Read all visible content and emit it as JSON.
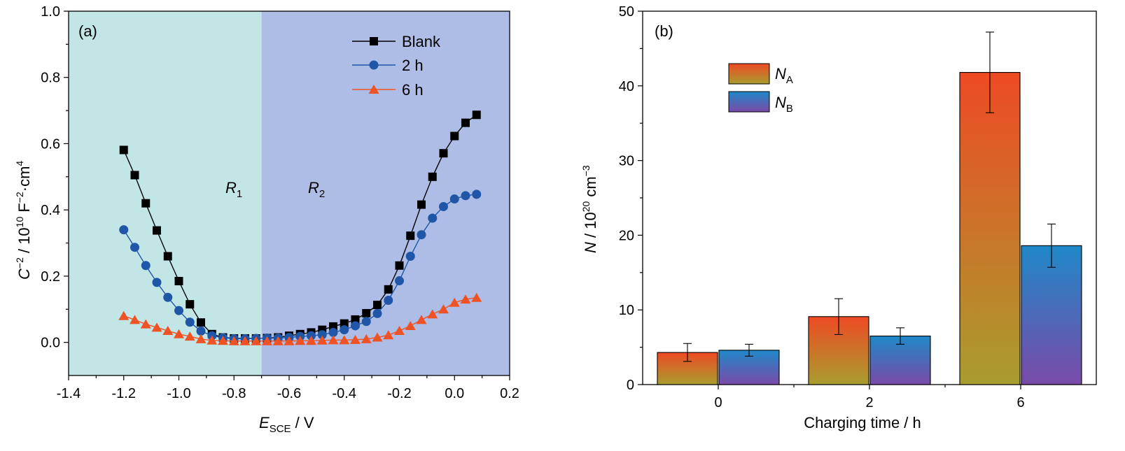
{
  "chart_data": [
    {
      "type": "line",
      "panel_label": "(a)",
      "xlabel": {
        "main": "E",
        "sub": "SCE",
        "tail": " / V"
      },
      "ylabel": {
        "a": "C",
        "b": "−2",
        "c": " / 10",
        "d": "10",
        "e": " F",
        "f": "−2",
        "g": "·cm",
        "h": "4"
      },
      "xlim": [
        -1.4,
        0.2
      ],
      "ylim": [
        -0.1,
        1.0
      ],
      "xticks": [
        "-1.4",
        "-1.2",
        "-1.0",
        "-0.8",
        "-0.6",
        "-0.4",
        "-0.2",
        "0.0",
        "0.2"
      ],
      "yticks": [
        "0.0",
        "0.2",
        "0.4",
        "0.6",
        "0.8",
        "1.0"
      ],
      "regions": [
        {
          "name": "R",
          "sub": "1",
          "from": -1.4,
          "to": -0.7,
          "color": "#c2e6e6"
        },
        {
          "name": "R",
          "sub": "2",
          "from": -0.7,
          "to": 0.2,
          "color": "#aebde5"
        }
      ],
      "legend_position": "top-right",
      "x": [
        -1.2,
        -1.16,
        -1.12,
        -1.08,
        -1.04,
        -1.0,
        -0.96,
        -0.92,
        -0.88,
        -0.84,
        -0.8,
        -0.76,
        -0.72,
        -0.68,
        -0.64,
        -0.6,
        -0.56,
        -0.52,
        -0.48,
        -0.44,
        -0.4,
        -0.36,
        -0.32,
        -0.28,
        -0.24,
        -0.2,
        -0.16,
        -0.12,
        -0.08,
        -0.04,
        0.0,
        0.04,
        0.08
      ],
      "series": [
        {
          "name": "Blank",
          "color": "#000000",
          "marker": "square",
          "values": [
            0.581,
            0.505,
            0.42,
            0.338,
            0.26,
            0.185,
            0.115,
            0.06,
            0.025,
            0.015,
            0.012,
            0.012,
            0.012,
            0.013,
            0.015,
            0.02,
            0.025,
            0.03,
            0.038,
            0.048,
            0.057,
            0.069,
            0.088,
            0.113,
            0.16,
            0.232,
            0.322,
            0.416,
            0.5,
            0.571,
            0.623,
            0.663,
            0.687
          ]
        },
        {
          "name": "2 h",
          "color": "#1f56a8",
          "marker": "circle",
          "values": [
            0.34,
            0.287,
            0.232,
            0.181,
            0.136,
            0.096,
            0.061,
            0.034,
            0.02,
            0.014,
            0.011,
            0.011,
            0.012,
            0.013,
            0.013,
            0.015,
            0.018,
            0.02,
            0.023,
            0.03,
            0.038,
            0.05,
            0.063,
            0.087,
            0.127,
            0.186,
            0.26,
            0.325,
            0.375,
            0.41,
            0.433,
            0.443,
            0.447
          ]
        },
        {
          "name": "6 h",
          "color": "#ef5325",
          "marker": "triangle",
          "values": [
            0.08,
            0.068,
            0.055,
            0.045,
            0.035,
            0.025,
            0.018,
            0.01,
            0.006,
            0.005,
            0.004,
            0.004,
            0.004,
            0.004,
            0.004,
            0.004,
            0.005,
            0.005,
            0.006,
            0.007,
            0.007,
            0.008,
            0.01,
            0.015,
            0.022,
            0.035,
            0.05,
            0.068,
            0.085,
            0.1,
            0.12,
            0.13,
            0.135
          ]
        }
      ]
    },
    {
      "type": "bar",
      "panel_label": "(b)",
      "xlabel": "Charging time / h",
      "ylabel": {
        "a": "N",
        "b": " / 10",
        "c": "20",
        "d": " cm",
        "e": "−3"
      },
      "ylim": [
        0,
        50
      ],
      "yticks": [
        "0",
        "10",
        "20",
        "30",
        "40",
        "50"
      ],
      "categories": [
        "0",
        "2",
        "6"
      ],
      "legend_position": "top-left",
      "series": [
        {
          "name": "N",
          "sub": "A",
          "grad_top": "#ee4a24",
          "grad_bottom": "#a89d2e",
          "values": [
            4.3,
            9.1,
            41.8
          ],
          "errors": [
            1.2,
            2.4,
            5.4
          ]
        },
        {
          "name": "N",
          "sub": "B",
          "grad_top": "#1f88c8",
          "grad_bottom": "#7a4aa8",
          "values": [
            4.6,
            6.5,
            18.6
          ],
          "errors": [
            0.8,
            1.1,
            2.9
          ]
        }
      ]
    }
  ]
}
